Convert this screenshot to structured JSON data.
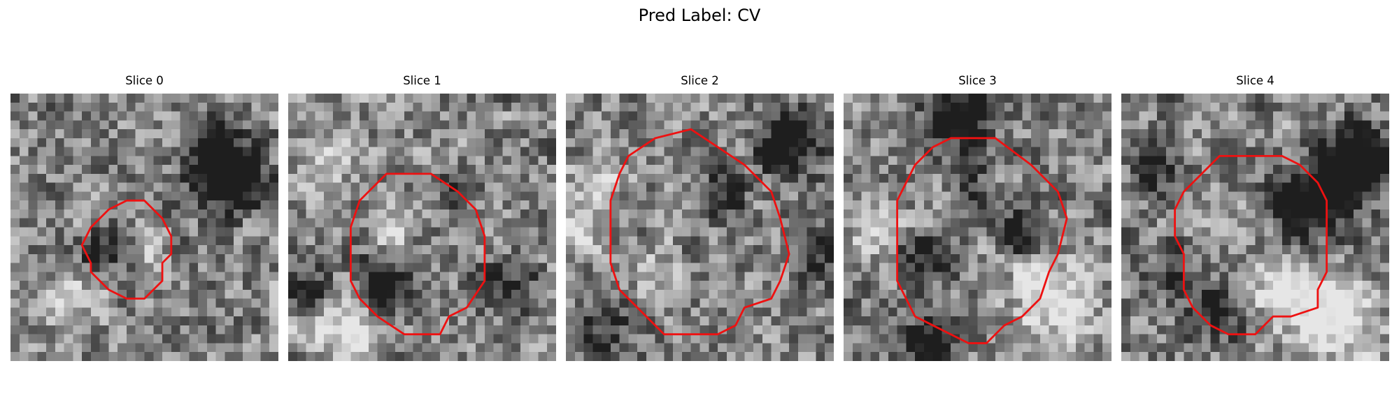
{
  "figure": {
    "title": "Pred Label: CV"
  },
  "panels": [
    {
      "title": "Slice 0",
      "seed": 11,
      "contour": [
        [
          13,
          12
        ],
        [
          15,
          12
        ],
        [
          17,
          14
        ],
        [
          18,
          16
        ],
        [
          18,
          18
        ],
        [
          17,
          19
        ],
        [
          17,
          21
        ],
        [
          15,
          23
        ],
        [
          13,
          23
        ],
        [
          11,
          22
        ],
        [
          9,
          20
        ],
        [
          9,
          19
        ],
        [
          8,
          17
        ],
        [
          9,
          15
        ],
        [
          10,
          14
        ],
        [
          11,
          13
        ]
      ],
      "dark_blobs": [
        [
          24,
          9,
          2.5,
          0.9
        ],
        [
          10,
          17,
          1.8,
          0.5
        ],
        [
          22,
          5,
          2.0,
          0.6
        ]
      ],
      "bright_blobs": [
        [
          6,
          23,
          2.0,
          0.5
        ],
        [
          15,
          17,
          1.5,
          0.3
        ]
      ]
    },
    {
      "title": "Slice 1",
      "seed": 23,
      "contour": [
        [
          11,
          9
        ],
        [
          16,
          9
        ],
        [
          19,
          11
        ],
        [
          21,
          13
        ],
        [
          22,
          16
        ],
        [
          22,
          21
        ],
        [
          20,
          24
        ],
        [
          18,
          25
        ],
        [
          17,
          27
        ],
        [
          13,
          27
        ],
        [
          10,
          25
        ],
        [
          8,
          23
        ],
        [
          7,
          21
        ],
        [
          7,
          15
        ],
        [
          8,
          12
        ],
        [
          9,
          11
        ]
      ],
      "dark_blobs": [
        [
          10,
          21,
          2.3,
          0.8
        ],
        [
          2,
          22,
          1.8,
          0.7
        ],
        [
          24,
          21,
          2.0,
          0.5
        ],
        [
          18,
          10,
          1.5,
          0.4
        ]
      ],
      "bright_blobs": [
        [
          6,
          25,
          3.0,
          0.6
        ],
        [
          11,
          15,
          1.5,
          0.4
        ],
        [
          4,
          7,
          2.0,
          0.3
        ]
      ]
    },
    {
      "title": "Slice 2",
      "seed": 37,
      "contour": [
        [
          14,
          4
        ],
        [
          17,
          6
        ],
        [
          20,
          8
        ],
        [
          23,
          11
        ],
        [
          24,
          14
        ],
        [
          25,
          18
        ],
        [
          24,
          21
        ],
        [
          23,
          23
        ],
        [
          20,
          24
        ],
        [
          19,
          26
        ],
        [
          17,
          27
        ],
        [
          11,
          27
        ],
        [
          8,
          24
        ],
        [
          6,
          22
        ],
        [
          5,
          19
        ],
        [
          5,
          12
        ],
        [
          6,
          9
        ],
        [
          7,
          7
        ],
        [
          10,
          5
        ]
      ],
      "dark_blobs": [
        [
          25,
          5,
          2.5,
          0.8
        ],
        [
          17,
          11,
          1.8,
          0.5
        ],
        [
          28,
          18,
          2.0,
          0.4
        ],
        [
          4,
          26,
          2.5,
          0.4
        ]
      ],
      "bright_blobs": [
        [
          3,
          10,
          2.0,
          0.6
        ],
        [
          10,
          20,
          2.0,
          0.4
        ],
        [
          1,
          15,
          1.5,
          0.5
        ]
      ]
    },
    {
      "title": "Slice 3",
      "seed": 53,
      "contour": [
        [
          12,
          5
        ],
        [
          17,
          5
        ],
        [
          21,
          8
        ],
        [
          24,
          11
        ],
        [
          25,
          14
        ],
        [
          24,
          18
        ],
        [
          23,
          20
        ],
        [
          22,
          23
        ],
        [
          20,
          25
        ],
        [
          18,
          26
        ],
        [
          16,
          28
        ],
        [
          14,
          28
        ],
        [
          12,
          27
        ],
        [
          10,
          26
        ],
        [
          8,
          25
        ],
        [
          7,
          23
        ],
        [
          6,
          21
        ],
        [
          6,
          12
        ],
        [
          7,
          10
        ],
        [
          8,
          8
        ],
        [
          10,
          6
        ]
      ],
      "dark_blobs": [
        [
          12,
          2,
          2.5,
          0.8
        ],
        [
          19,
          15,
          1.8,
          0.6
        ],
        [
          9,
          28,
          2.0,
          0.8
        ],
        [
          8,
          18,
          2.0,
          0.5
        ],
        [
          14,
          10,
          1.5,
          0.4
        ]
      ],
      "bright_blobs": [
        [
          22,
          21,
          2.5,
          0.6
        ],
        [
          3,
          15,
          2.0,
          0.4
        ],
        [
          25,
          25,
          2.0,
          0.5
        ]
      ]
    },
    {
      "title": "Slice 4",
      "seed": 71,
      "contour": [
        [
          11,
          7
        ],
        [
          18,
          7
        ],
        [
          20,
          8
        ],
        [
          22,
          10
        ],
        [
          23,
          12
        ],
        [
          23,
          20
        ],
        [
          22,
          22
        ],
        [
          22,
          24
        ],
        [
          19,
          25
        ],
        [
          17,
          25
        ],
        [
          15,
          27
        ],
        [
          12,
          27
        ],
        [
          10,
          26
        ],
        [
          8,
          24
        ],
        [
          7,
          22
        ],
        [
          7,
          18
        ],
        [
          6,
          16
        ],
        [
          6,
          13
        ],
        [
          7,
          11
        ],
        [
          9,
          9
        ]
      ],
      "dark_blobs": [
        [
          24,
          9,
          3.0,
          0.9
        ],
        [
          19,
          13,
          2.5,
          0.6
        ],
        [
          27,
          6,
          2.0,
          0.6
        ],
        [
          3,
          8,
          2.0,
          0.5
        ],
        [
          10,
          24,
          2.0,
          0.6
        ],
        [
          5,
          20,
          1.8,
          0.5
        ]
      ],
      "bright_blobs": [
        [
          23,
          24,
          3.0,
          0.8
        ],
        [
          17,
          22,
          2.0,
          0.6
        ],
        [
          14,
          14,
          2.0,
          0.3
        ]
      ]
    }
  ],
  "colors": {
    "contour": "#ee1111"
  }
}
